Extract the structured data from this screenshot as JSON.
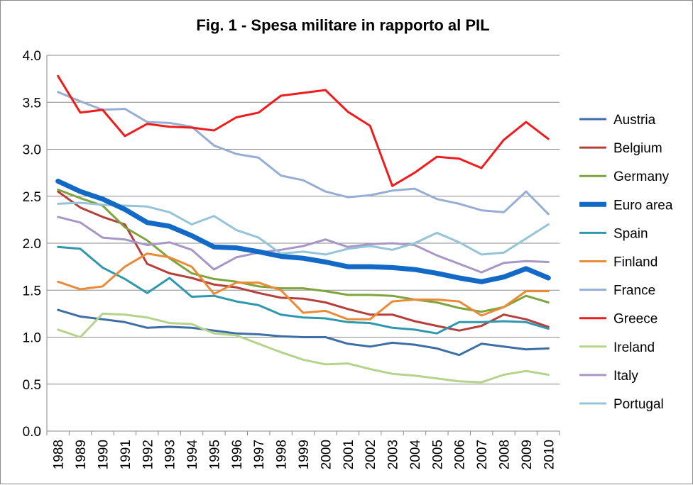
{
  "chart_data": {
    "type": "line",
    "title": "Fig. 1 - Spesa militare in rapporto al PIL",
    "xlabel": "",
    "ylabel": "",
    "ylim": [
      0,
      4
    ],
    "y_ticks": [
      "0.0",
      "0.5",
      "1.0",
      "1.5",
      "2.0",
      "2.5",
      "3.0",
      "3.5",
      "4.0"
    ],
    "x": [
      "1988",
      "1989",
      "1990",
      "1991",
      "1992",
      "1993",
      "1994",
      "1995",
      "1996",
      "1997",
      "1998",
      "1999",
      "2000",
      "2001",
      "2002",
      "2003",
      "2004",
      "2005",
      "2006",
      "2007",
      "2008",
      "2009",
      "2010"
    ],
    "grid": true,
    "legend_position": "right",
    "series": [
      {
        "name": "Austria",
        "color": "#3d6fa6",
        "emphasis": false,
        "values": [
          1.29,
          1.22,
          1.19,
          1.16,
          1.1,
          1.11,
          1.1,
          1.07,
          1.04,
          1.03,
          1.01,
          1.0,
          1.0,
          0.93,
          0.9,
          0.94,
          0.92,
          0.88,
          0.81,
          0.93,
          0.9,
          0.87,
          0.88
        ]
      },
      {
        "name": "Belgium",
        "color": "#b5403b",
        "emphasis": false,
        "values": [
          2.55,
          2.38,
          2.28,
          2.2,
          1.78,
          1.68,
          1.63,
          1.56,
          1.53,
          1.47,
          1.42,
          1.41,
          1.37,
          1.3,
          1.24,
          1.24,
          1.17,
          1.12,
          1.07,
          1.12,
          1.24,
          1.19,
          1.11
        ]
      },
      {
        "name": "Germany",
        "color": "#7ea43c",
        "emphasis": false,
        "values": [
          2.57,
          2.48,
          2.4,
          2.17,
          2.03,
          1.84,
          1.68,
          1.62,
          1.59,
          1.54,
          1.52,
          1.52,
          1.49,
          1.45,
          1.45,
          1.44,
          1.4,
          1.37,
          1.31,
          1.27,
          1.32,
          1.44,
          1.37
        ]
      },
      {
        "name": "Euro area",
        "color": "#1269c6",
        "emphasis": true,
        "values": [
          2.66,
          2.55,
          2.47,
          2.36,
          2.22,
          2.18,
          2.08,
          1.96,
          1.95,
          1.91,
          1.86,
          1.84,
          1.8,
          1.75,
          1.75,
          1.74,
          1.72,
          1.68,
          1.63,
          1.59,
          1.64,
          1.73,
          1.63
        ]
      },
      {
        "name": "Spain",
        "color": "#2f98ae",
        "emphasis": false,
        "values": [
          1.96,
          1.94,
          1.74,
          1.62,
          1.47,
          1.63,
          1.43,
          1.44,
          1.38,
          1.34,
          1.24,
          1.21,
          1.2,
          1.16,
          1.15,
          1.1,
          1.08,
          1.04,
          1.16,
          1.16,
          1.17,
          1.16,
          1.09
        ]
      },
      {
        "name": "Finland",
        "color": "#e98b38",
        "emphasis": false,
        "values": [
          1.59,
          1.51,
          1.54,
          1.75,
          1.89,
          1.85,
          1.75,
          1.46,
          1.58,
          1.58,
          1.5,
          1.26,
          1.28,
          1.19,
          1.19,
          1.38,
          1.4,
          1.4,
          1.38,
          1.23,
          1.32,
          1.49,
          1.49
        ]
      },
      {
        "name": "France",
        "color": "#97aed4",
        "emphasis": false,
        "values": [
          3.61,
          3.51,
          3.42,
          3.43,
          3.29,
          3.28,
          3.24,
          3.04,
          2.95,
          2.91,
          2.72,
          2.67,
          2.55,
          2.49,
          2.51,
          2.56,
          2.58,
          2.47,
          2.42,
          2.35,
          2.33,
          2.55,
          2.31
        ]
      },
      {
        "name": "Greece",
        "color": "#ee1c1c",
        "emphasis": false,
        "values": [
          3.78,
          3.39,
          3.42,
          3.14,
          3.27,
          3.24,
          3.23,
          3.2,
          3.34,
          3.39,
          3.57,
          3.6,
          3.63,
          3.4,
          3.25,
          2.61,
          2.75,
          2.92,
          2.9,
          2.8,
          3.1,
          3.29,
          3.11
        ]
      },
      {
        "name": "Ireland",
        "color": "#b6d38b",
        "emphasis": false,
        "values": [
          1.08,
          1.0,
          1.25,
          1.24,
          1.21,
          1.15,
          1.14,
          1.04,
          1.02,
          0.93,
          0.84,
          0.76,
          0.71,
          0.72,
          0.66,
          0.61,
          0.59,
          0.56,
          0.53,
          0.52,
          0.6,
          0.64,
          0.6
        ]
      },
      {
        "name": "Italy",
        "color": "#a797c6",
        "emphasis": false,
        "values": [
          2.28,
          2.22,
          2.06,
          2.04,
          1.98,
          2.01,
          1.93,
          1.72,
          1.85,
          1.9,
          1.93,
          1.97,
          2.04,
          1.96,
          1.99,
          2.0,
          1.98,
          1.87,
          1.78,
          1.69,
          1.79,
          1.81,
          1.8
        ]
      },
      {
        "name": "Portugal",
        "color": "#95c4d8",
        "emphasis": false,
        "values": [
          2.42,
          2.43,
          2.41,
          2.4,
          2.39,
          2.33,
          2.2,
          2.29,
          2.14,
          2.06,
          1.89,
          1.91,
          1.88,
          1.94,
          1.97,
          1.93,
          2.0,
          2.11,
          2.01,
          1.88,
          1.9,
          2.05,
          2.2
        ]
      }
    ]
  }
}
